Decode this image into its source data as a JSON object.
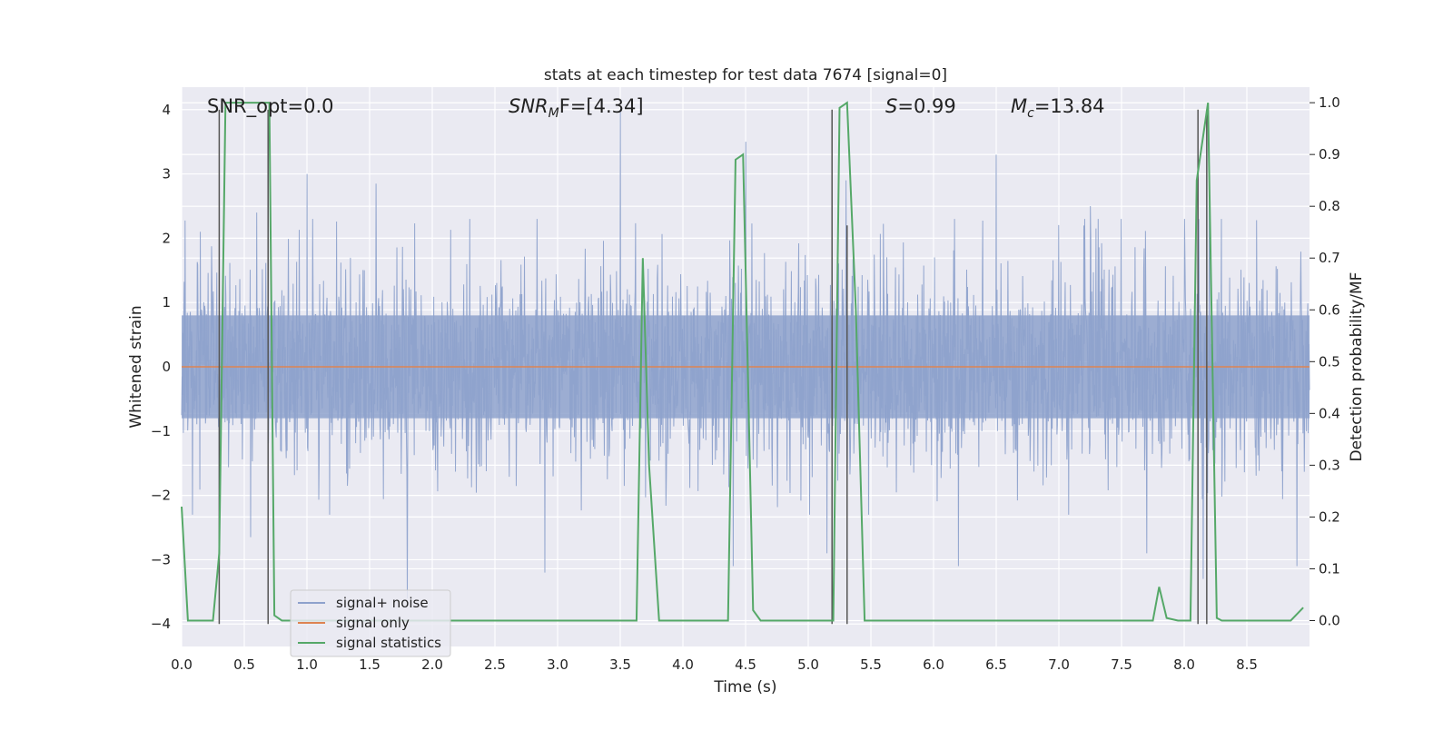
{
  "chart_data": {
    "type": "line",
    "title": "stats at each timestep for test data 7674 [signal=0]",
    "xlabel": "Time (s)",
    "ylabel_left": "Whitened strain",
    "ylabel_right": "Detection probability/MF",
    "xlim": [
      0.0,
      9.0
    ],
    "ylim_left": [
      -4.35,
      4.35
    ],
    "ylim_right": [
      -0.05,
      1.03
    ],
    "x_ticks": [
      0.0,
      0.5,
      1.0,
      1.5,
      2.0,
      2.5,
      3.0,
      3.5,
      4.0,
      4.5,
      5.0,
      5.5,
      6.0,
      6.5,
      7.0,
      7.5,
      8.0,
      8.5
    ],
    "x_tick_labels": [
      "0.0",
      "0.5",
      "1.0",
      "1.5",
      "2.0",
      "2.5",
      "3.0",
      "3.5",
      "4.0",
      "4.5",
      "5.0",
      "5.5",
      "6.0",
      "6.5",
      "7.0",
      "7.5",
      "8.0",
      "8.5"
    ],
    "y_left_ticks": [
      4,
      3,
      2,
      1,
      0,
      -1,
      -2,
      -3,
      -4
    ],
    "y_left_tick_labels": [
      "4",
      "3",
      "2",
      "1",
      "0",
      "−1",
      "−2",
      "−3",
      "−4"
    ],
    "y_right_ticks": [
      1.0,
      0.9,
      0.8,
      0.7,
      0.6,
      0.5,
      0.4,
      0.3,
      0.2,
      0.1,
      0.0
    ],
    "y_right_tick_labels": [
      "1.0",
      "0.9",
      "0.8",
      "0.7",
      "0.6",
      "0.5",
      "0.4",
      "0.3",
      "0.2",
      "0.1",
      "0.0"
    ],
    "annotations": {
      "snr_opt": "SNR_opt=0.0",
      "snr_mf_main": "SNR",
      "snr_mf_sub": "M",
      "snr_mf_rest": "F=[4.34]",
      "s_main": "S",
      "s_rest": "=0.99",
      "mc_main": "M",
      "mc_sub": "c",
      "mc_rest": "=13.84"
    },
    "legend": {
      "position": "lower-left",
      "entries": [
        {
          "label": "signal+ noise",
          "color": "#8ea2cc"
        },
        {
          "label": "signal only",
          "color": "#dd8452"
        },
        {
          "label": "signal statistics",
          "color": "#55a868"
        }
      ]
    },
    "colors": {
      "background": "#eaeaf2",
      "grid": "#ffffff",
      "noise": "#8ea2cc",
      "signal": "#dd8452",
      "stats": "#55a868",
      "markers": "#555555"
    },
    "noise_envelope": {
      "core_upper": 0.8,
      "core_lower": -0.8,
      "upper_peaks": [
        {
          "x": 0.15,
          "y": 2.1
        },
        {
          "x": 0.3,
          "y": 2.7
        },
        {
          "x": 0.6,
          "y": 2.4
        },
        {
          "x": 1.0,
          "y": 3.0
        },
        {
          "x": 1.55,
          "y": 2.85
        },
        {
          "x": 2.3,
          "y": 2.3
        },
        {
          "x": 3.5,
          "y": 4.0
        },
        {
          "x": 4.5,
          "y": 3.5
        },
        {
          "x": 5.3,
          "y": 2.9
        },
        {
          "x": 6.5,
          "y": 3.3
        },
        {
          "x": 7.25,
          "y": 2.5
        },
        {
          "x": 8.2,
          "y": 2.6
        },
        {
          "x": 8.9,
          "y": 2.9
        }
      ],
      "lower_peaks": [
        {
          "x": 0.3,
          "y": -2.3
        },
        {
          "x": 0.55,
          "y": -2.65
        },
        {
          "x": 1.8,
          "y": -3.6
        },
        {
          "x": 2.9,
          "y": -3.2
        },
        {
          "x": 4.4,
          "y": -3.1
        },
        {
          "x": 5.15,
          "y": -2.9
        },
        {
          "x": 6.2,
          "y": -3.1
        },
        {
          "x": 7.7,
          "y": -2.9
        },
        {
          "x": 8.15,
          "y": -3.3
        },
        {
          "x": 8.9,
          "y": -3.1
        }
      ]
    },
    "series": [
      {
        "name": "signal+ noise",
        "axis": "left",
        "seed": 7674,
        "amplitude": 0.8
      },
      {
        "name": "signal only",
        "axis": "left",
        "x": [
          0.0,
          9.0
        ],
        "y": [
          0.0,
          0.0
        ]
      },
      {
        "name": "signal statistics",
        "axis": "right",
        "x": [
          0.0,
          0.05,
          0.25,
          0.3,
          0.35,
          0.38,
          0.65,
          0.7,
          0.74,
          0.8,
          0.9,
          1.5,
          2.0,
          2.5,
          3.0,
          3.5,
          3.63,
          3.68,
          3.73,
          3.81,
          4.0,
          4.36,
          4.42,
          4.48,
          4.56,
          4.62,
          5.0,
          5.2,
          5.25,
          5.31,
          5.38,
          5.45,
          6.0,
          7.0,
          7.6,
          7.75,
          7.8,
          7.86,
          7.95,
          8.05,
          8.1,
          8.19,
          8.26,
          8.3,
          8.5,
          8.7,
          8.85,
          8.95
        ],
        "y": [
          0.22,
          0.0,
          0.0,
          0.13,
          1.0,
          1.0,
          1.0,
          1.0,
          0.01,
          0.0,
          0.0,
          0.0,
          0.0,
          0.0,
          0.0,
          0.0,
          0.0,
          0.7,
          0.3,
          0.0,
          0.0,
          0.0,
          0.89,
          0.9,
          0.02,
          0.0,
          0.0,
          0.0,
          0.99,
          1.0,
          0.6,
          0.0,
          0.0,
          0.0,
          0.0,
          0.0,
          0.065,
          0.005,
          0.0,
          0.0,
          0.85,
          1.0,
          0.005,
          0.0,
          0.0,
          0.0,
          0.0,
          0.025
        ]
      }
    ],
    "detection_markers": {
      "x": [
        0.3,
        0.69,
        5.19,
        5.31,
        8.11,
        8.18
      ],
      "y_top": [
        4.0,
        4.0,
        4.0,
        2.2,
        4.0,
        4.0
      ],
      "y_bottom": -4.0
    }
  }
}
